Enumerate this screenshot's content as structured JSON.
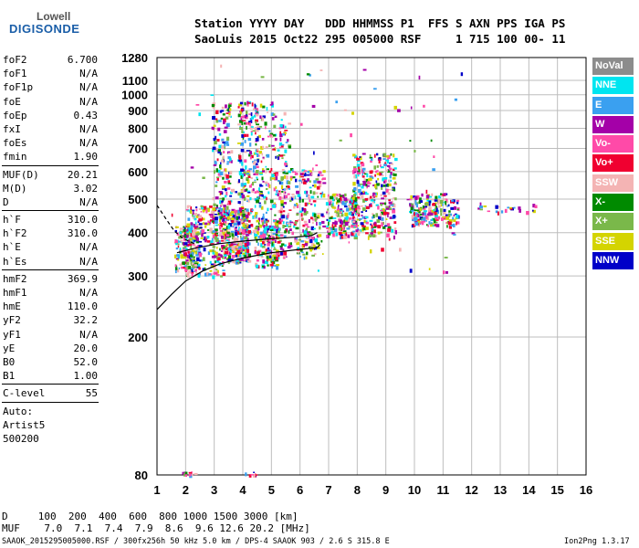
{
  "logo": {
    "top": "Lowell",
    "bottom": "DIGISONDE"
  },
  "header": {
    "line1": "Station YYYY DAY   DDD HHMMSS P1  FFS S AXN PPS IGA PS",
    "line2": "SaoLuis 2015 Oct22 295 005000 RSF     1 715 100 00- 11"
  },
  "params": [
    {
      "name": "foF2",
      "value": "6.700"
    },
    {
      "name": "foF1",
      "value": "N/A"
    },
    {
      "name": "foF1p",
      "value": "N/A"
    },
    {
      "name": "foE",
      "value": "N/A"
    },
    {
      "name": "foEp",
      "value": "0.43"
    },
    {
      "name": "fxI",
      "value": "N/A"
    },
    {
      "name": "foEs",
      "value": "N/A"
    },
    {
      "name": "fmin",
      "value": "1.90"
    },
    {
      "sep": true
    },
    {
      "name": "MUF(D)",
      "value": "20.21"
    },
    {
      "name": "M(D)",
      "value": "3.02"
    },
    {
      "name": "D",
      "value": "N/A"
    },
    {
      "sep": true
    },
    {
      "name": "h`F",
      "value": "310.0"
    },
    {
      "name": "h`F2",
      "value": "310.0"
    },
    {
      "name": "h`E",
      "value": "N/A"
    },
    {
      "name": "h`Es",
      "value": "N/A"
    },
    {
      "sep": true
    },
    {
      "name": "hmF2",
      "value": "369.9"
    },
    {
      "name": "hmF1",
      "value": "N/A"
    },
    {
      "name": "hmE",
      "value": "110.0"
    },
    {
      "name": "yF2",
      "value": "32.2"
    },
    {
      "name": "yF1",
      "value": "N/A"
    },
    {
      "name": "yE",
      "value": "20.0"
    },
    {
      "name": "B0",
      "value": "52.0"
    },
    {
      "name": "B1",
      "value": "1.00"
    },
    {
      "sep": true
    },
    {
      "name": "C-level",
      "value": "55"
    },
    {
      "sep": true
    },
    {
      "name": "Auto:",
      "value": ""
    },
    {
      "name": "Artist5",
      "value": ""
    },
    {
      "name": "500200",
      "value": ""
    }
  ],
  "legend": [
    {
      "label": "NoVal",
      "color": "#8c8c8c"
    },
    {
      "label": "NNE",
      "color": "#00e5f0"
    },
    {
      "label": "E",
      "color": "#3aa0f0"
    },
    {
      "label": "W",
      "color": "#a400a8"
    },
    {
      "label": "Vo-",
      "color": "#ff4aa8"
    },
    {
      "label": "Vo+",
      "color": "#f00030"
    },
    {
      "label": "SSW",
      "color": "#f4b4b4"
    },
    {
      "label": "X-",
      "color": "#008a00"
    },
    {
      "label": "X+",
      "color": "#7ab84a"
    },
    {
      "label": "SSE",
      "color": "#d4d400"
    },
    {
      "label": "NNW",
      "color": "#0000c8"
    }
  ],
  "footer": {
    "d_row": "D     100  200  400  600  800 1000 1500 3000 [km]",
    "muf_row": "MUF    7.0  7.1  7.4  7.9  8.6  9.6 12.6 20.2 [MHz]",
    "file_info": "SAAOK_2015295005000.RSF / 300fx256h 50 kHz 5.0 km / DPS-4 SAAOK 903 / 2.6 S 315.8 E",
    "version": "Ion2Png 1.3.17"
  },
  "chart_data": {
    "type": "scatter",
    "title": "",
    "xlabel": "",
    "ylabel": "",
    "xlim": [
      1,
      16
    ],
    "ylim": [
      80,
      1280
    ],
    "y_scale": "log",
    "grid": true,
    "xticks": [
      "1",
      "2",
      "3",
      "4",
      "5",
      "6",
      "7",
      "8",
      "9",
      "10",
      "11",
      "12",
      "13",
      "14",
      "15",
      "16"
    ],
    "yticks": [
      80,
      200,
      300,
      400,
      500,
      600,
      700,
      800,
      900,
      1000,
      1100,
      1280
    ],
    "series_colors": [
      "#a400a8",
      "#ff4aa8",
      "#f00030",
      "#f4b4b4",
      "#008a00",
      "#7ab84a",
      "#d4d400",
      "#0000c8",
      "#00e5f0",
      "#3aa0f0"
    ],
    "density_clusters": [
      {
        "f": [
          1.6,
          2.4
        ],
        "h": [
          310,
          420
        ],
        "n": 140
      },
      {
        "f": [
          2.0,
          3.3
        ],
        "h": [
          300,
          480
        ],
        "n": 260
      },
      {
        "f": [
          3.3,
          4.2
        ],
        "h": [
          330,
          470
        ],
        "n": 320
      },
      {
        "f": [
          2.9,
          3.6
        ],
        "h": [
          380,
          950
        ],
        "n": 180
      },
      {
        "f": [
          3.8,
          4.5
        ],
        "h": [
          400,
          960
        ],
        "n": 220
      },
      {
        "f": [
          4.4,
          5.6
        ],
        "h": [
          380,
          960
        ],
        "n": 220
      },
      {
        "f": [
          4.4,
          5.2
        ],
        "h": [
          320,
          440
        ],
        "n": 160
      },
      {
        "f": [
          5.2,
          6.8
        ],
        "h": [
          340,
          620
        ],
        "n": 260
      },
      {
        "f": [
          6.9,
          8.0
        ],
        "h": [
          390,
          520
        ],
        "n": 200
      },
      {
        "f": [
          7.8,
          9.3
        ],
        "h": [
          390,
          680
        ],
        "n": 320
      },
      {
        "f": [
          9.8,
          11.5
        ],
        "h": [
          420,
          520
        ],
        "n": 200
      },
      {
        "f": [
          12.2,
          14.2
        ],
        "h": [
          460,
          490
        ],
        "n": 24
      },
      {
        "f": [
          1.5,
          12.0
        ],
        "h": [
          300,
          1280
        ],
        "n": 90
      },
      {
        "f": [
          1.8,
          2.3
        ],
        "h": [
          80,
          82
        ],
        "n": 10
      },
      {
        "f": [
          4.0,
          4.6
        ],
        "h": [
          80,
          82
        ],
        "n": 8
      }
    ],
    "profile_curve": [
      {
        "f": 1.0,
        "h": 240
      },
      {
        "f": 1.5,
        "h": 265
      },
      {
        "f": 2.0,
        "h": 290
      },
      {
        "f": 2.6,
        "h": 310
      },
      {
        "f": 3.2,
        "h": 325
      },
      {
        "f": 4.0,
        "h": 338
      },
      {
        "f": 5.0,
        "h": 350
      },
      {
        "f": 6.0,
        "h": 358
      },
      {
        "f": 6.6,
        "h": 362
      },
      {
        "f": 6.7,
        "h": 370
      }
    ],
    "trace_curve": [
      {
        "f": 1.7,
        "h": 350
      },
      {
        "f": 2.4,
        "h": 362
      },
      {
        "f": 3.2,
        "h": 372
      },
      {
        "f": 4.0,
        "h": 378
      },
      {
        "f": 5.0,
        "h": 384
      },
      {
        "f": 5.8,
        "h": 388
      },
      {
        "f": 6.4,
        "h": 392
      },
      {
        "f": 6.6,
        "h": 400
      }
    ],
    "dashed_curve": [
      {
        "f": 1.0,
        "h": 480
      },
      {
        "f": 1.3,
        "h": 440
      },
      {
        "f": 1.6,
        "h": 405
      },
      {
        "f": 1.9,
        "h": 385
      },
      {
        "f": 2.3,
        "h": 372
      }
    ]
  }
}
